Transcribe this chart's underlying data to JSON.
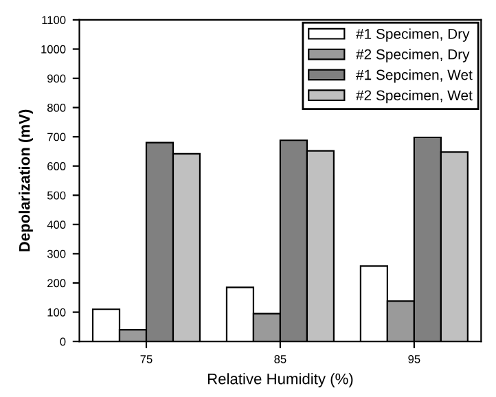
{
  "chart_data": {
    "type": "bar",
    "xlabel": "Relative Humidity (%)",
    "ylabel": "Depolarization (mV)",
    "categories": [
      "75",
      "85",
      "95"
    ],
    "series": [
      {
        "name": "#1 Specimen, Dry",
        "color": "#ffffff",
        "values": [
          110,
          185,
          258
        ]
      },
      {
        "name": "#2 Specimen, Dry",
        "color": "#9a9a9a",
        "values": [
          40,
          95,
          138
        ]
      },
      {
        "name": "#1 Sepcimen, Wet",
        "color": "#808080",
        "values": [
          680,
          688,
          698
        ]
      },
      {
        "name": "#2 Specimen, Wet",
        "color": "#c0c0c0",
        "values": [
          642,
          652,
          648
        ]
      }
    ],
    "ylim": [
      0,
      1100
    ],
    "yticks": [
      0,
      100,
      200,
      300,
      400,
      500,
      600,
      700,
      800,
      900,
      1000,
      1100
    ],
    "grid": false,
    "legend": "top right"
  }
}
